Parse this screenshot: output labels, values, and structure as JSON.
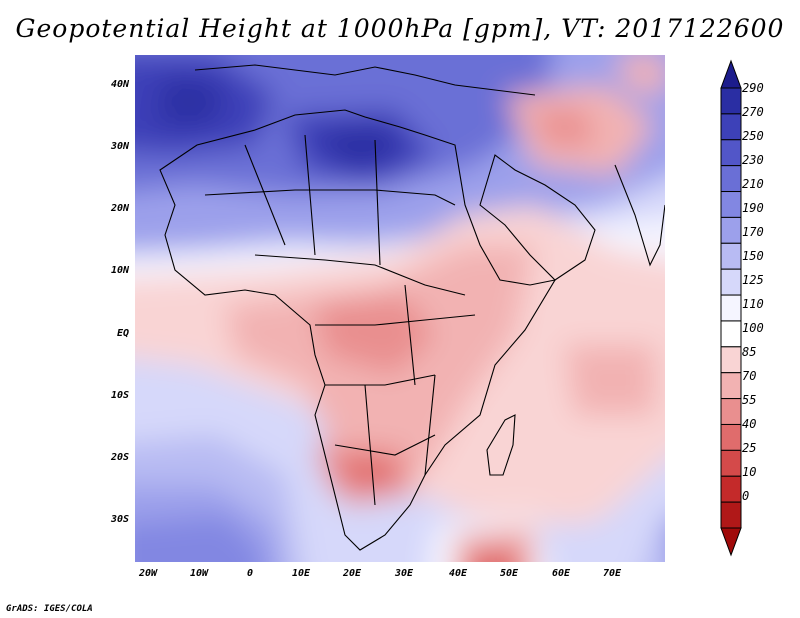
{
  "title": "Geopotential Height at 1000hPa [gpm], VT: 2017122600",
  "latitude_labels": [
    "40N",
    "30N",
    "20N",
    "10N",
    "EQ",
    "10S",
    "20S",
    "30S"
  ],
  "longitude_labels": [
    "20W",
    "10W",
    "0",
    "10E",
    "20E",
    "30E",
    "40E",
    "50E",
    "60E",
    "70E"
  ],
  "colorbar": {
    "levels": [
      "290",
      "270",
      "250",
      "230",
      "210",
      "190",
      "170",
      "150",
      "125",
      "110",
      "100",
      "85",
      "70",
      "55",
      "40",
      "25",
      "10",
      "0"
    ],
    "colors": [
      "#1c1c8c",
      "#2a2ea3",
      "#3d41b8",
      "#5256c8",
      "#6a6fd6",
      "#8287e2",
      "#9ca0eb",
      "#b8bbf3",
      "#d6d8fa",
      "#f5f5ff",
      "#ffffff",
      "#f9d4d4",
      "#f2b2b2",
      "#e98f8f",
      "#e06c6c",
      "#d44a4a",
      "#c42a2a",
      "#b01818",
      "#a00a0a"
    ]
  },
  "footer": "GrADS: IGES/COLA"
}
